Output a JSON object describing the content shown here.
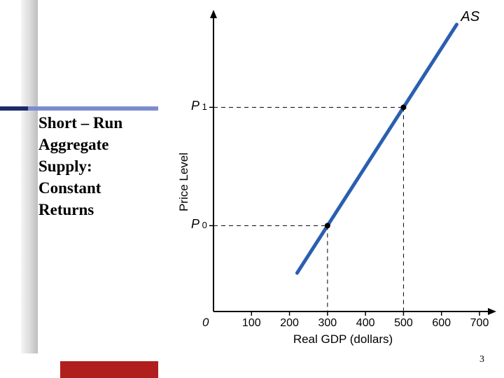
{
  "title": {
    "lines": [
      "Short – Run",
      "Aggregate",
      "Supply:",
      "Constant",
      "Returns"
    ],
    "font_family": "Times New Roman",
    "font_size_pt": 17,
    "font_weight": "bold",
    "color": "#000000"
  },
  "decor": {
    "rule_color": "#7d8ccf",
    "rule_dark_color": "#1e2a6b",
    "left_gradient_from": "#eeeeee",
    "left_gradient_to": "#888888",
    "bottom_bar_color": "#b01e1e"
  },
  "page_number": "3",
  "chart": {
    "type": "line",
    "curve_label": "AS",
    "x_axis": {
      "label": "Real GDP (dollars)",
      "label_fontsize": 17,
      "origin_label": "0",
      "ticks": [
        100,
        200,
        300,
        400,
        500,
        600,
        700
      ],
      "xlim": [
        0,
        700
      ]
    },
    "y_axis": {
      "label": "Price Level",
      "label_fontsize": 17,
      "tick_labels": [
        "P0",
        "P1"
      ],
      "tick_gdp_positions": [
        300,
        500
      ]
    },
    "line": {
      "color": "#2a5fb0",
      "width": 5,
      "start_gdp": 220,
      "end_gdp": 640
    },
    "reference_points": [
      {
        "gdp": 300,
        "price_label": "P0"
      },
      {
        "gdp": 500,
        "price_label": "P1"
      }
    ],
    "dashed": {
      "color": "#000000",
      "dash": "6,5",
      "width": 1
    },
    "point": {
      "radius": 4,
      "fill": "#000000"
    },
    "axis_color": "#000000",
    "axis_width": 2,
    "background_color": "#ffffff",
    "tick_length": 6,
    "tick_fontsize": 16
  }
}
